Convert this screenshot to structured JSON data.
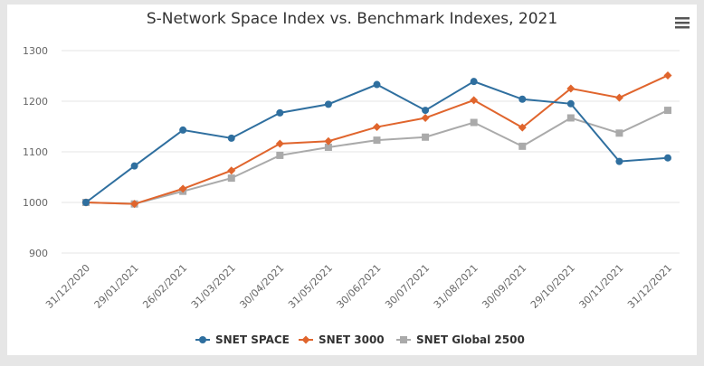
{
  "menu": {
    "icon": "hamburger-menu-icon"
  },
  "chart_data": {
    "type": "line",
    "title": "S-Network Space Index vs. Benchmark Indexes, 2021",
    "xlabel": "",
    "ylabel": "",
    "x": [
      "31/12/2020",
      "29/01/2021",
      "26/02/2021",
      "31/03/2021",
      "30/04/2021",
      "31/05/2021",
      "30/06/2021",
      "30/07/2021",
      "31/08/2021",
      "30/09/2021",
      "29/10/2021",
      "30/11/2021",
      "31/12/2021"
    ],
    "yticks": [
      900,
      1000,
      1100,
      1200,
      1300
    ],
    "ylim": [
      900,
      1300
    ],
    "grid": true,
    "legend": "bottom-center",
    "series": [
      {
        "name": "SNET SPACE",
        "color": "#2f6f9f",
        "marker": "circle",
        "values": [
          1000,
          1072,
          1143,
          1127,
          1177,
          1194,
          1233,
          1182,
          1239,
          1204,
          1195,
          1081,
          1088
        ]
      },
      {
        "name": "SNET 3000",
        "color": "#e0652d",
        "marker": "diamond",
        "values": [
          1000,
          997,
          1027,
          1063,
          1116,
          1121,
          1149,
          1167,
          1202,
          1148,
          1225,
          1207,
          1251
        ]
      },
      {
        "name": "SNET Global 2500",
        "color": "#aaaaaa",
        "marker": "square",
        "values": [
          1000,
          997,
          1022,
          1048,
          1093,
          1109,
          1123,
          1129,
          1158,
          1111,
          1167,
          1137,
          1182
        ]
      }
    ]
  }
}
